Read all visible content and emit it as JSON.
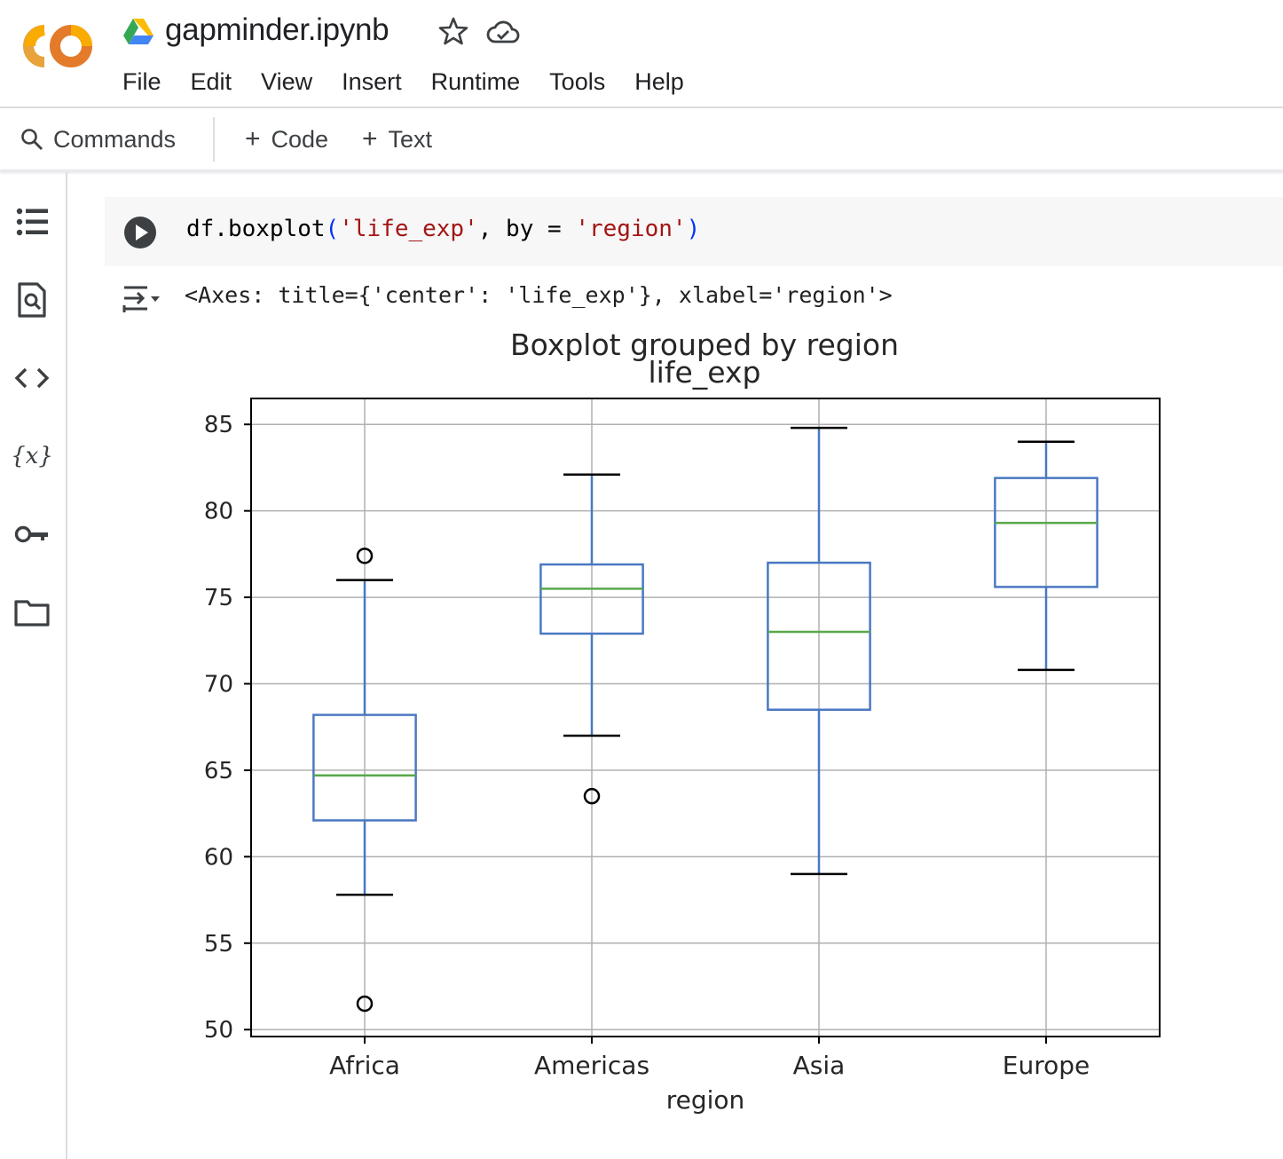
{
  "header": {
    "file_name": "gapminder.ipynb",
    "menu": [
      "File",
      "Edit",
      "View",
      "Insert",
      "Runtime",
      "Tools",
      "Help"
    ]
  },
  "toolbar": {
    "commands_label": "Commands",
    "add_code_label": "Code",
    "add_text_label": "Text"
  },
  "sidebar": {
    "icons": [
      "table-of-contents-icon",
      "find-icon",
      "code-snippets-icon",
      "variables-icon",
      "secrets-key-icon",
      "files-folder-icon"
    ]
  },
  "cell": {
    "code_tokens": [
      {
        "text": "df.boxplot",
        "kind": "plain"
      },
      {
        "text": "(",
        "kind": "paren"
      },
      {
        "text": "'life_exp'",
        "kind": "str"
      },
      {
        "text": ", by = ",
        "kind": "plain"
      },
      {
        "text": "'region'",
        "kind": "str"
      },
      {
        "text": ")",
        "kind": "paren"
      }
    ],
    "output_text": "<Axes: title={'center': 'life_exp'}, xlabel='region'>"
  },
  "colors": {
    "box": "#4a78c2",
    "median": "#59a84b",
    "string": "#a31515",
    "paren": "#0431fa"
  },
  "chart_data": {
    "type": "boxplot",
    "suptitle": "Boxplot grouped by region",
    "title": "life_exp",
    "xlabel": "region",
    "ylabel": "",
    "ylim": [
      49.6,
      86.5
    ],
    "yticks": [
      50,
      55,
      60,
      65,
      70,
      75,
      80,
      85
    ],
    "grid": true,
    "categories": [
      "Africa",
      "Americas",
      "Asia",
      "Europe"
    ],
    "boxes": [
      {
        "name": "Africa",
        "whisker_low": 57.8,
        "q1": 62.1,
        "median": 64.7,
        "q3": 68.2,
        "whisker_high": 76.0,
        "outliers": [
          77.4,
          51.5
        ]
      },
      {
        "name": "Americas",
        "whisker_low": 67.0,
        "q1": 72.9,
        "median": 75.5,
        "q3": 76.9,
        "whisker_high": 82.1,
        "outliers": [
          63.5
        ]
      },
      {
        "name": "Asia",
        "whisker_low": 59.0,
        "q1": 68.5,
        "median": 73.0,
        "q3": 77.0,
        "whisker_high": 84.8,
        "outliers": []
      },
      {
        "name": "Europe",
        "whisker_low": 70.8,
        "q1": 75.6,
        "median": 79.3,
        "q3": 81.9,
        "whisker_high": 84.0,
        "outliers": []
      }
    ]
  }
}
